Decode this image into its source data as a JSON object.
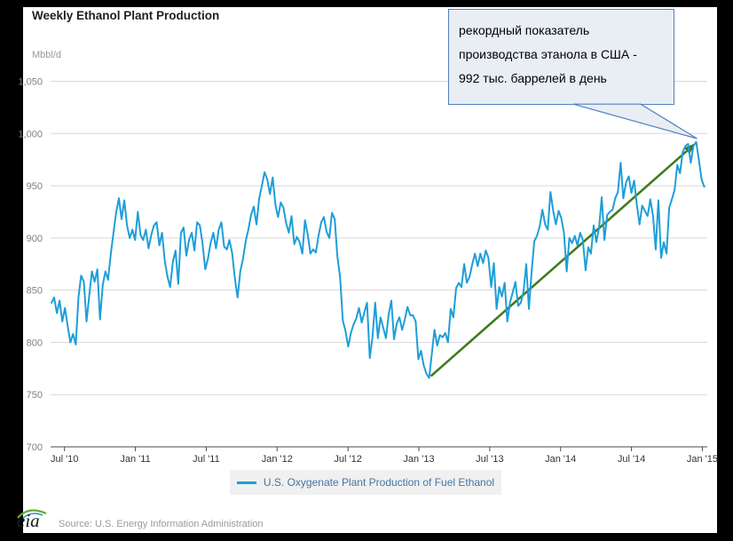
{
  "header": {
    "title": "Weekly Ethanol Plant Production"
  },
  "y_axis": {
    "unit": "Mbbl/d",
    "tick_labels": [
      "1,050",
      "1,000",
      "950",
      "900",
      "850",
      "800",
      "750",
      "700"
    ]
  },
  "x_axis": {
    "tick_labels": [
      "Jul '10",
      "Jan '11",
      "Jul '11",
      "Jan '12",
      "Jul '12",
      "Jan '13",
      "Jul '13",
      "Jan '14",
      "Jul '14",
      "Jan '15"
    ]
  },
  "annotation": {
    "lines": [
      "рекордный показатель",
      "производства этанола в США -",
      "992 тыс. баррелей в день"
    ],
    "record_value": 992,
    "callout_fill": "#e9eef5",
    "callout_border": "#4f81bd",
    "arrow_color": "#3e7c1f"
  },
  "legend": {
    "label": "U.S. Oxygenate Plant Production of Fuel Ethanol",
    "swatch_color": "#1e9ed9"
  },
  "footer": {
    "logo_text": "eia",
    "source": "Source: U.S. Energy Information Administration"
  },
  "chart_data": {
    "type": "line",
    "title": "Weekly Ethanol Plant Production",
    "ylabel": "Mbbl/d",
    "ylim": [
      700,
      1050
    ],
    "y_ticks": [
      1050,
      1000,
      950,
      900,
      850,
      800,
      750,
      700
    ],
    "x_tick_labels": [
      "Jul '10",
      "Jan '11",
      "Jul '11",
      "Jan '12",
      "Jul '12",
      "Jan '13",
      "Jul '13",
      "Jan '14",
      "Jul '14",
      "Jan '15"
    ],
    "grid": true,
    "legend_position": "bottom",
    "x_interval": "weekly",
    "series": [
      {
        "name": "U.S. Oxygenate Plant Production of Fuel Ethanol",
        "color": "#1e9ed9",
        "values": [
          838,
          843,
          828,
          840,
          820,
          833,
          816,
          800,
          808,
          798,
          843,
          864,
          858,
          820,
          845,
          868,
          858,
          870,
          822,
          855,
          868,
          860,
          885,
          905,
          925,
          938,
          918,
          936,
          912,
          900,
          908,
          898,
          925,
          903,
          898,
          908,
          890,
          903,
          912,
          915,
          893,
          905,
          878,
          863,
          853,
          877,
          888,
          856,
          905,
          910,
          883,
          898,
          905,
          888,
          915,
          912,
          895,
          870,
          880,
          895,
          905,
          890,
          908,
          915,
          892,
          889,
          898,
          885,
          861,
          843,
          868,
          880,
          897,
          908,
          922,
          930,
          913,
          938,
          950,
          963,
          956,
          942,
          958,
          932,
          920,
          934,
          929,
          914,
          905,
          921,
          894,
          901,
          896,
          885,
          917,
          903,
          885,
          889,
          886,
          902,
          915,
          920,
          906,
          900,
          924,
          918,
          882,
          863,
          821,
          811,
          796,
          809,
          817,
          823,
          833,
          819,
          829,
          838,
          785,
          805,
          838,
          804,
          824,
          814,
          804,
          827,
          840,
          803,
          818,
          824,
          812,
          822,
          834,
          826,
          826,
          820,
          784,
          792,
          778,
          770,
          766,
          789,
          812,
          797,
          807,
          805,
          809,
          800,
          832,
          824,
          852,
          857,
          853,
          875,
          857,
          863,
          875,
          885,
          873,
          885,
          876,
          888,
          881,
          853,
          876,
          832,
          853,
          844,
          857,
          820,
          838,
          848,
          858,
          835,
          838,
          848,
          875,
          832,
          868,
          897,
          902,
          911,
          927,
          913,
          908,
          944,
          926,
          913,
          926,
          919,
          905,
          868,
          900,
          895,
          902,
          893,
          905,
          898,
          869,
          891,
          885,
          912,
          896,
          910,
          939,
          898,
          922,
          925,
          927,
          938,
          944,
          972,
          938,
          953,
          959,
          943,
          955,
          932,
          913,
          931,
          926,
          921,
          937,
          921,
          889,
          936,
          881,
          896,
          885,
          929,
          937,
          946,
          970,
          962,
          982,
          988,
          990,
          972,
          988,
          992,
          975,
          956,
          949
        ]
      }
    ],
    "annotations": [
      {
        "type": "trend-arrow",
        "from_value": 766,
        "to_value": 992,
        "color": "#3e7c1f"
      },
      {
        "type": "callout",
        "text": "рекордный показатель производства этанола в США - 992 тыс. баррелей в день"
      }
    ]
  }
}
